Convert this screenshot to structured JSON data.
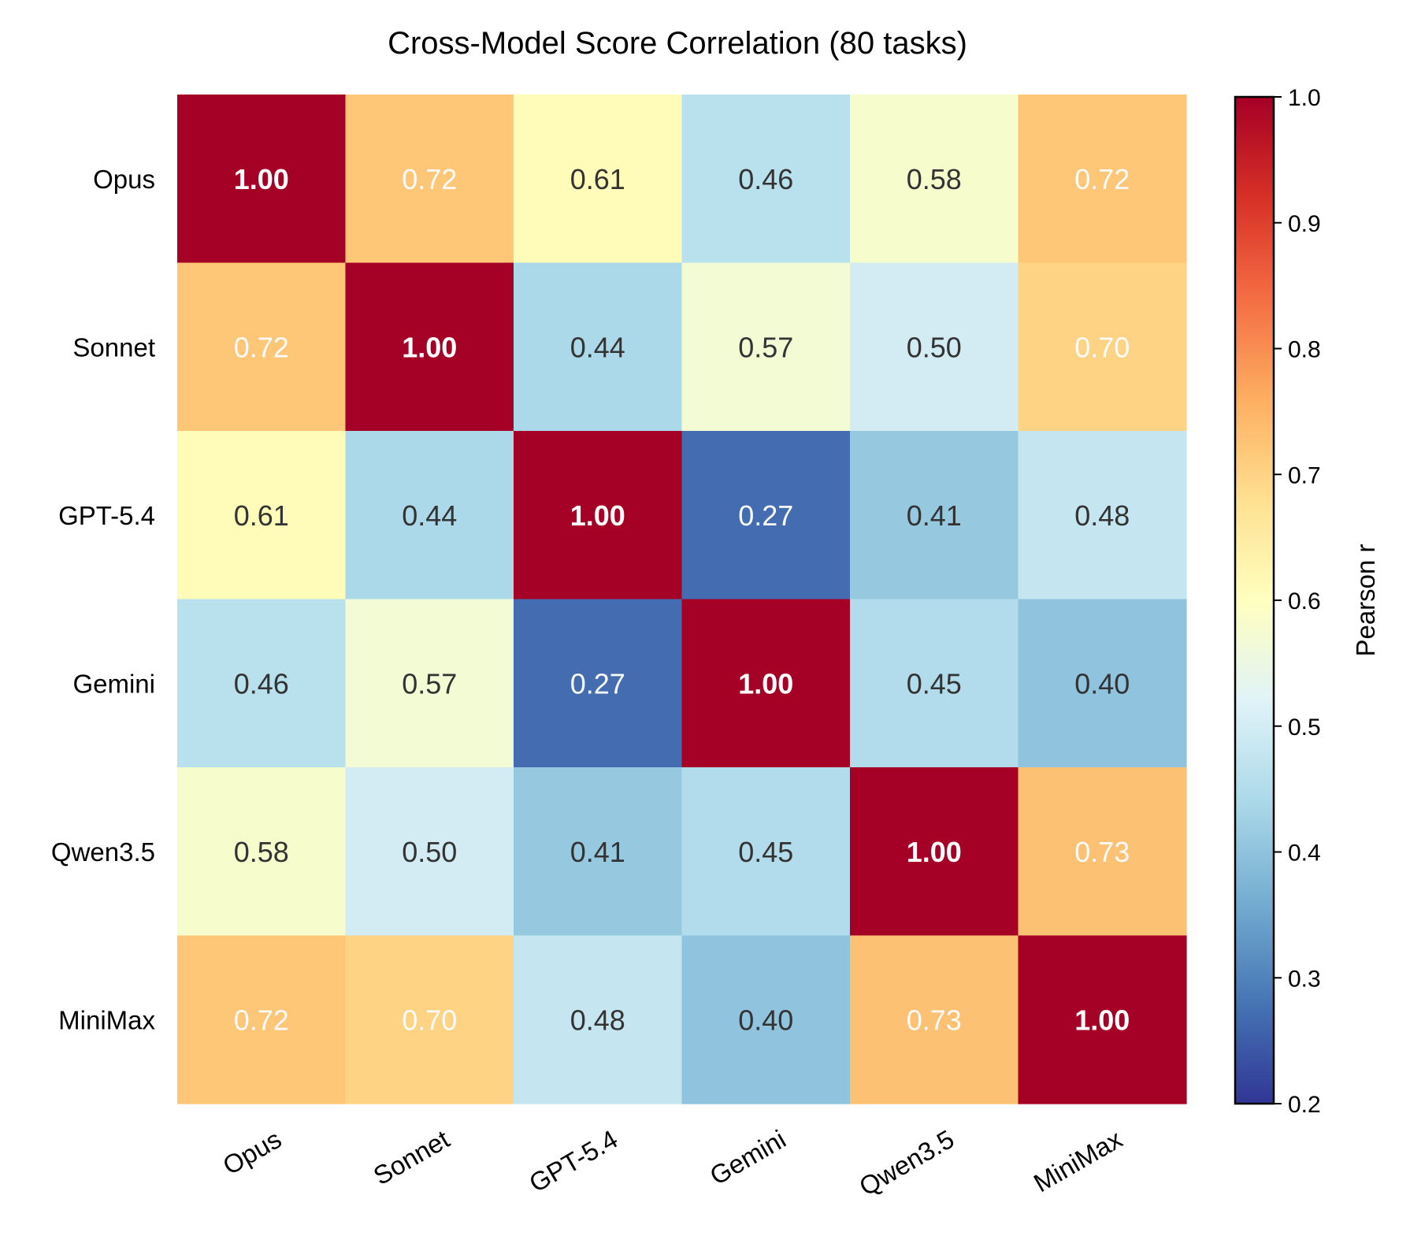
{
  "chart_data": {
    "type": "heatmap",
    "title": "Cross-Model Score Correlation (80 tasks)",
    "rows": [
      "Opus",
      "Sonnet",
      "GPT-5.4",
      "Gemini",
      "Qwen3.5",
      "MiniMax"
    ],
    "columns": [
      "Opus",
      "Sonnet",
      "GPT-5.4",
      "Gemini",
      "Qwen3.5",
      "MiniMax"
    ],
    "values": [
      [
        1.0,
        0.72,
        0.61,
        0.46,
        0.58,
        0.72
      ],
      [
        0.72,
        1.0,
        0.44,
        0.57,
        0.5,
        0.7
      ],
      [
        0.61,
        0.44,
        1.0,
        0.27,
        0.41,
        0.48
      ],
      [
        0.46,
        0.57,
        0.27,
        1.0,
        0.45,
        0.4
      ],
      [
        0.58,
        0.5,
        0.41,
        0.45,
        1.0,
        0.73
      ],
      [
        0.72,
        0.7,
        0.48,
        0.4,
        0.73,
        1.0
      ]
    ],
    "colorbar": {
      "label": "Pearson r",
      "range": [
        0.2,
        1.0
      ],
      "ticks": [
        0.2,
        0.3,
        0.4,
        0.5,
        0.6,
        0.7,
        0.8,
        0.9,
        1.0
      ],
      "colormap": "RdYlBu_r"
    },
    "grid": false
  }
}
